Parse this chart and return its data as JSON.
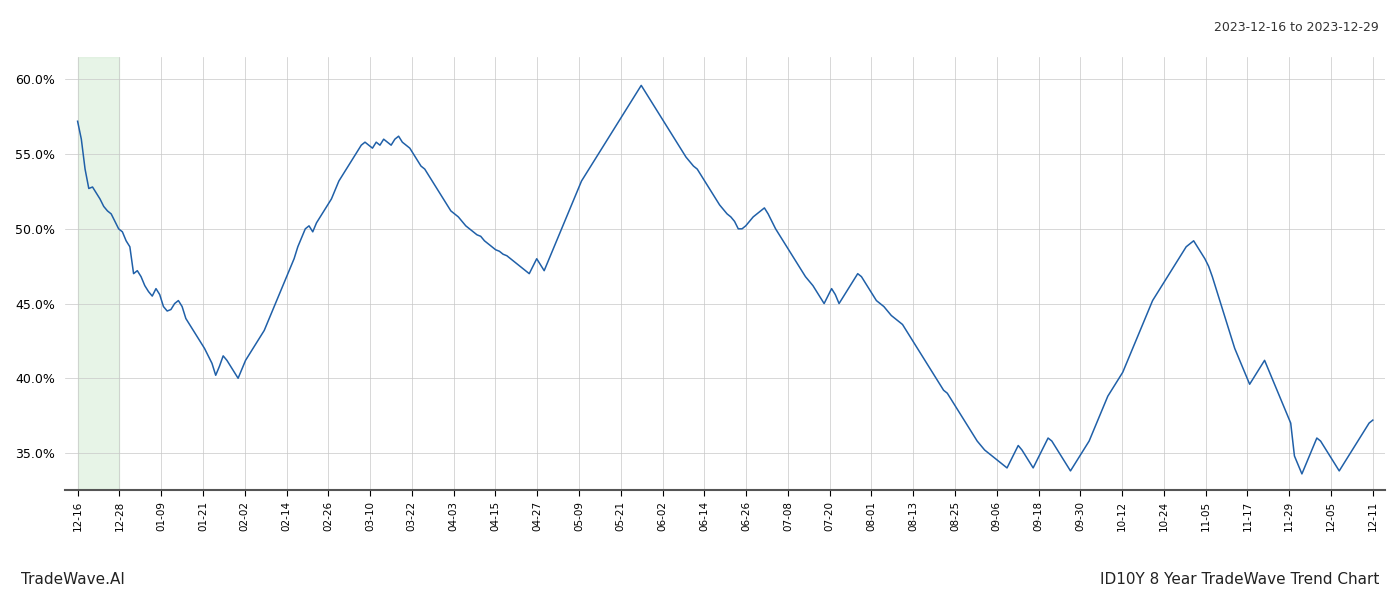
{
  "title_top_right": "2023-12-16 to 2023-12-29",
  "title_bottom_right": "ID10Y 8 Year TradeWave Trend Chart",
  "title_bottom_left": "TradeWave.AI",
  "line_color": "#2060a8",
  "highlight_color": "#d4ecd4",
  "highlight_alpha": 0.55,
  "background_color": "#ffffff",
  "grid_color": "#c8c8c8",
  "ylim": [
    0.325,
    0.615
  ],
  "yticks": [
    0.35,
    0.4,
    0.45,
    0.5,
    0.55,
    0.6
  ],
  "x_labels": [
    "12-16",
    "12-28",
    "01-09",
    "01-21",
    "02-02",
    "02-14",
    "02-26",
    "03-10",
    "03-22",
    "04-03",
    "04-15",
    "04-27",
    "05-09",
    "05-21",
    "06-02",
    "06-14",
    "06-26",
    "07-08",
    "07-20",
    "08-01",
    "08-13",
    "08-25",
    "09-06",
    "09-18",
    "09-30",
    "10-12",
    "10-24",
    "11-05",
    "11-17",
    "11-29",
    "12-05",
    "12-11"
  ],
  "values": [
    0.572,
    0.56,
    0.54,
    0.527,
    0.528,
    0.524,
    0.52,
    0.515,
    0.512,
    0.51,
    0.505,
    0.5,
    0.498,
    0.492,
    0.488,
    0.47,
    0.472,
    0.468,
    0.462,
    0.458,
    0.455,
    0.46,
    0.456,
    0.448,
    0.445,
    0.446,
    0.45,
    0.452,
    0.448,
    0.44,
    0.436,
    0.432,
    0.428,
    0.424,
    0.42,
    0.415,
    0.41,
    0.402,
    0.408,
    0.415,
    0.412,
    0.408,
    0.404,
    0.4,
    0.406,
    0.412,
    0.416,
    0.42,
    0.424,
    0.428,
    0.432,
    0.438,
    0.444,
    0.45,
    0.456,
    0.462,
    0.468,
    0.474,
    0.48,
    0.488,
    0.494,
    0.5,
    0.502,
    0.498,
    0.504,
    0.508,
    0.512,
    0.516,
    0.52,
    0.526,
    0.532,
    0.536,
    0.54,
    0.544,
    0.548,
    0.552,
    0.556,
    0.558,
    0.556,
    0.554,
    0.558,
    0.556,
    0.56,
    0.558,
    0.556,
    0.56,
    0.562,
    0.558,
    0.556,
    0.554,
    0.55,
    0.546,
    0.542,
    0.54,
    0.536,
    0.532,
    0.528,
    0.524,
    0.52,
    0.516,
    0.512,
    0.51,
    0.508,
    0.505,
    0.502,
    0.5,
    0.498,
    0.496,
    0.495,
    0.492,
    0.49,
    0.488,
    0.486,
    0.485,
    0.483,
    0.482,
    0.48,
    0.478,
    0.476,
    0.474,
    0.472,
    0.47,
    0.475,
    0.48,
    0.476,
    0.472,
    0.478,
    0.484,
    0.49,
    0.496,
    0.502,
    0.508,
    0.514,
    0.52,
    0.526,
    0.532,
    0.536,
    0.54,
    0.544,
    0.548,
    0.552,
    0.556,
    0.56,
    0.564,
    0.568,
    0.572,
    0.576,
    0.58,
    0.584,
    0.588,
    0.592,
    0.596,
    0.592,
    0.588,
    0.584,
    0.58,
    0.576,
    0.572,
    0.568,
    0.564,
    0.56,
    0.556,
    0.552,
    0.548,
    0.545,
    0.542,
    0.54,
    0.536,
    0.532,
    0.528,
    0.524,
    0.52,
    0.516,
    0.513,
    0.51,
    0.508,
    0.505,
    0.5,
    0.5,
    0.502,
    0.505,
    0.508,
    0.51,
    0.512,
    0.514,
    0.51,
    0.505,
    0.5,
    0.496,
    0.492,
    0.488,
    0.484,
    0.48,
    0.476,
    0.472,
    0.468,
    0.465,
    0.462,
    0.458,
    0.454,
    0.45,
    0.455,
    0.46,
    0.456,
    0.45,
    0.454,
    0.458,
    0.462,
    0.466,
    0.47,
    0.468,
    0.464,
    0.46,
    0.456,
    0.452,
    0.45,
    0.448,
    0.445,
    0.442,
    0.44,
    0.438,
    0.436,
    0.432,
    0.428,
    0.424,
    0.42,
    0.416,
    0.412,
    0.408,
    0.404,
    0.4,
    0.396,
    0.392,
    0.39,
    0.386,
    0.382,
    0.378,
    0.374,
    0.37,
    0.366,
    0.362,
    0.358,
    0.355,
    0.352,
    0.35,
    0.348,
    0.346,
    0.344,
    0.342,
    0.34,
    0.345,
    0.35,
    0.355,
    0.352,
    0.348,
    0.344,
    0.34,
    0.345,
    0.35,
    0.355,
    0.36,
    0.358,
    0.354,
    0.35,
    0.346,
    0.342,
    0.338,
    0.342,
    0.346,
    0.35,
    0.354,
    0.358,
    0.364,
    0.37,
    0.376,
    0.382,
    0.388,
    0.392,
    0.396,
    0.4,
    0.404,
    0.41,
    0.416,
    0.422,
    0.428,
    0.434,
    0.44,
    0.446,
    0.452,
    0.456,
    0.46,
    0.464,
    0.468,
    0.472,
    0.476,
    0.48,
    0.484,
    0.488,
    0.49,
    0.492,
    0.488,
    0.484,
    0.48,
    0.475,
    0.468,
    0.46,
    0.452,
    0.444,
    0.436,
    0.428,
    0.42,
    0.414,
    0.408,
    0.402,
    0.396,
    0.4,
    0.404,
    0.408,
    0.412,
    0.406,
    0.4,
    0.394,
    0.388,
    0.382,
    0.376,
    0.37,
    0.348,
    0.342,
    0.336,
    0.342,
    0.348,
    0.354,
    0.36,
    0.358,
    0.354,
    0.35,
    0.346,
    0.342,
    0.338,
    0.342,
    0.346,
    0.35,
    0.354,
    0.358,
    0.362,
    0.366,
    0.37,
    0.372
  ],
  "n_highlight_grid_cols": 32
}
